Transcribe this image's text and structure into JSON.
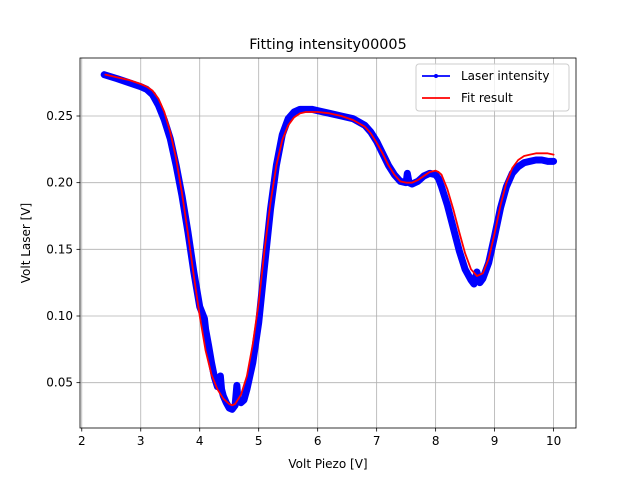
{
  "chart_data": {
    "type": "line",
    "title": "Fitting intensity00005",
    "xlabel": "Volt Piezo [V]",
    "ylabel": "Volt Laser [V]",
    "xlim": [
      1.97,
      10.38
    ],
    "ylim": [
      0.016,
      0.2935
    ],
    "xticks": [
      2,
      3,
      4,
      5,
      6,
      7,
      8,
      9,
      10
    ],
    "yticks": [
      0.05,
      0.1,
      0.15,
      0.2,
      0.25
    ],
    "ytick_labels": [
      "0.05",
      "0.10",
      "0.15",
      "0.20",
      "0.25"
    ],
    "grid": true,
    "legend_position": "top-right",
    "series": [
      {
        "name": "Laser intensity",
        "color": "#0000ff",
        "style": "line-with-markers",
        "x": [
          2.38,
          2.6,
          2.8,
          3.0,
          3.1,
          3.2,
          3.3,
          3.4,
          3.5,
          3.6,
          3.7,
          3.8,
          3.9,
          4.0,
          4.08,
          4.1,
          4.15,
          4.2,
          4.25,
          4.3,
          4.35,
          4.37,
          4.4,
          4.45,
          4.5,
          4.55,
          4.6,
          4.63,
          4.65,
          4.7,
          4.75,
          4.8,
          4.9,
          5.0,
          5.1,
          5.2,
          5.3,
          5.4,
          5.5,
          5.6,
          5.7,
          5.8,
          5.9,
          6.0,
          6.2,
          6.4,
          6.6,
          6.8,
          6.9,
          7.0,
          7.1,
          7.2,
          7.3,
          7.4,
          7.5,
          7.52,
          7.55,
          7.6,
          7.7,
          7.8,
          7.9,
          8.0,
          8.05,
          8.1,
          8.2,
          8.3,
          8.4,
          8.5,
          8.6,
          8.65,
          8.7,
          8.75,
          8.8,
          8.9,
          9.0,
          9.1,
          9.2,
          9.3,
          9.4,
          9.5,
          9.6,
          9.7,
          9.8,
          9.9,
          10.0
        ],
        "y": [
          0.281,
          0.278,
          0.275,
          0.272,
          0.27,
          0.266,
          0.258,
          0.247,
          0.233,
          0.213,
          0.19,
          0.163,
          0.133,
          0.107,
          0.098,
          0.09,
          0.078,
          0.065,
          0.054,
          0.047,
          0.055,
          0.045,
          0.04,
          0.035,
          0.031,
          0.03,
          0.033,
          0.048,
          0.036,
          0.035,
          0.037,
          0.045,
          0.065,
          0.095,
          0.138,
          0.18,
          0.213,
          0.236,
          0.248,
          0.253,
          0.255,
          0.255,
          0.255,
          0.254,
          0.252,
          0.25,
          0.248,
          0.243,
          0.238,
          0.231,
          0.222,
          0.213,
          0.206,
          0.201,
          0.2,
          0.207,
          0.2,
          0.199,
          0.201,
          0.205,
          0.207,
          0.206,
          0.203,
          0.197,
          0.183,
          0.166,
          0.149,
          0.135,
          0.127,
          0.124,
          0.133,
          0.125,
          0.128,
          0.14,
          0.16,
          0.181,
          0.197,
          0.207,
          0.212,
          0.215,
          0.216,
          0.217,
          0.217,
          0.216,
          0.216
        ]
      },
      {
        "name": "Fit result",
        "color": "#ff0000",
        "style": "line",
        "x": [
          2.4,
          2.6,
          2.8,
          3.0,
          3.1,
          3.2,
          3.3,
          3.4,
          3.5,
          3.6,
          3.7,
          3.8,
          3.9,
          4.0,
          4.1,
          4.2,
          4.3,
          4.4,
          4.5,
          4.55,
          4.6,
          4.7,
          4.8,
          4.9,
          5.0,
          5.1,
          5.2,
          5.3,
          5.4,
          5.5,
          5.6,
          5.7,
          5.8,
          5.9,
          6.0,
          6.2,
          6.4,
          6.6,
          6.8,
          6.9,
          7.0,
          7.1,
          7.2,
          7.3,
          7.4,
          7.5,
          7.6,
          7.7,
          7.8,
          7.9,
          8.0,
          8.05,
          8.1,
          8.2,
          8.3,
          8.4,
          8.5,
          8.6,
          8.7,
          8.8,
          8.9,
          9.0,
          9.1,
          9.2,
          9.3,
          9.4,
          9.5,
          9.6,
          9.7,
          9.8,
          9.9,
          10.0
        ],
        "y": [
          0.281,
          0.279,
          0.277,
          0.274,
          0.272,
          0.269,
          0.263,
          0.253,
          0.238,
          0.218,
          0.192,
          0.162,
          0.13,
          0.1,
          0.074,
          0.056,
          0.045,
          0.038,
          0.034,
          0.033,
          0.034,
          0.041,
          0.055,
          0.079,
          0.11,
          0.15,
          0.185,
          0.213,
          0.232,
          0.243,
          0.249,
          0.252,
          0.253,
          0.253,
          0.253,
          0.252,
          0.25,
          0.247,
          0.242,
          0.237,
          0.23,
          0.222,
          0.213,
          0.206,
          0.201,
          0.2,
          0.2,
          0.202,
          0.205,
          0.208,
          0.209,
          0.208,
          0.206,
          0.195,
          0.18,
          0.163,
          0.147,
          0.135,
          0.13,
          0.132,
          0.143,
          0.162,
          0.183,
          0.2,
          0.211,
          0.217,
          0.22,
          0.221,
          0.222,
          0.222,
          0.222,
          0.221
        ]
      }
    ]
  }
}
